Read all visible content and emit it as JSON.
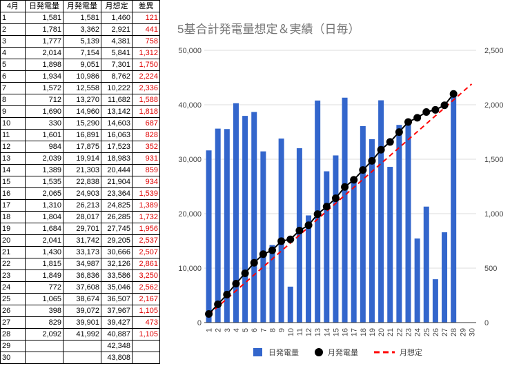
{
  "table": {
    "headers": [
      "4月",
      "日発電量",
      "月発電量",
      "月想定",
      "差異"
    ],
    "rows": [
      [
        "1",
        "1,581",
        "1,581",
        "1,460",
        "121"
      ],
      [
        "2",
        "1,781",
        "3,362",
        "2,921",
        "441"
      ],
      [
        "3",
        "1,777",
        "5,139",
        "4,381",
        "758"
      ],
      [
        "4",
        "2,014",
        "7,154",
        "5,841",
        "1,312"
      ],
      [
        "5",
        "1,898",
        "9,051",
        "7,301",
        "1,750"
      ],
      [
        "6",
        "1,934",
        "10,986",
        "8,762",
        "2,224"
      ],
      [
        "7",
        "1,572",
        "12,558",
        "10,222",
        "2,336"
      ],
      [
        "8",
        "712",
        "13,270",
        "11,682",
        "1,588"
      ],
      [
        "9",
        "1,690",
        "14,960",
        "13,142",
        "1,818"
      ],
      [
        "10",
        "330",
        "15,290",
        "14,603",
        "687"
      ],
      [
        "11",
        "1,601",
        "16,891",
        "16,063",
        "828"
      ],
      [
        "12",
        "984",
        "17,875",
        "17,523",
        "352"
      ],
      [
        "13",
        "2,039",
        "19,914",
        "18,983",
        "931"
      ],
      [
        "14",
        "1,389",
        "21,303",
        "20,444",
        "859"
      ],
      [
        "15",
        "1,535",
        "22,838",
        "21,904",
        "934"
      ],
      [
        "16",
        "2,065",
        "24,903",
        "23,364",
        "1,539"
      ],
      [
        "17",
        "1,310",
        "26,213",
        "24,825",
        "1,389"
      ],
      [
        "18",
        "1,804",
        "28,017",
        "26,285",
        "1,732"
      ],
      [
        "19",
        "1,684",
        "29,701",
        "27,745",
        "1,956"
      ],
      [
        "20",
        "2,041",
        "31,742",
        "29,205",
        "2,537"
      ],
      [
        "21",
        "1,430",
        "33,173",
        "30,666",
        "2,507"
      ],
      [
        "22",
        "1,815",
        "34,987",
        "32,126",
        "2,861"
      ],
      [
        "23",
        "1,849",
        "36,836",
        "33,586",
        "3,250"
      ],
      [
        "24",
        "772",
        "37,608",
        "35,046",
        "2,562"
      ],
      [
        "25",
        "1,065",
        "38,674",
        "36,507",
        "2,167"
      ],
      [
        "26",
        "398",
        "39,072",
        "37,967",
        "1,105"
      ],
      [
        "27",
        "829",
        "39,901",
        "39,427",
        "473"
      ],
      [
        "28",
        "2,092",
        "41,992",
        "40,887",
        "1,105"
      ],
      [
        "29",
        "",
        "",
        "42,348",
        ""
      ],
      [
        "30",
        "",
        "",
        "43,808",
        ""
      ]
    ]
  },
  "chart_data": {
    "type": "bar",
    "title": "5基合計発電量想定＆実績（日毎）",
    "categories": [
      "1",
      "2",
      "3",
      "4",
      "5",
      "6",
      "7",
      "8",
      "9",
      "10",
      "11",
      "12",
      "13",
      "14",
      "15",
      "16",
      "17",
      "18",
      "19",
      "20",
      "21",
      "22",
      "23",
      "24",
      "25",
      "26",
      "27",
      "28",
      "29",
      "30"
    ],
    "series": [
      {
        "name": "日発電量",
        "kind": "bar",
        "axis": "right",
        "color": "#3366cc",
        "values": [
          1581,
          1781,
          1777,
          2014,
          1898,
          1934,
          1572,
          712,
          1690,
          330,
          1601,
          984,
          2039,
          1389,
          1535,
          2065,
          1310,
          1804,
          1684,
          2041,
          1430,
          1815,
          1849,
          772,
          1065,
          398,
          829,
          2092,
          null,
          null
        ]
      },
      {
        "name": "月発電量",
        "kind": "line-markers",
        "axis": "left",
        "color": "#000000",
        "values": [
          1581,
          3362,
          5139,
          7154,
          9051,
          10986,
          12558,
          13270,
          14960,
          15290,
          16891,
          17875,
          19914,
          21303,
          22838,
          24903,
          26213,
          28017,
          29701,
          31742,
          33173,
          34987,
          36836,
          37608,
          38674,
          39072,
          39901,
          41992,
          null,
          null
        ]
      },
      {
        "name": "月想定",
        "kind": "line-dashed",
        "axis": "left",
        "color": "#ff0000",
        "values": [
          1460,
          2921,
          4381,
          5841,
          7301,
          8762,
          10222,
          11682,
          13142,
          14603,
          16063,
          17523,
          18983,
          20444,
          21904,
          23364,
          24825,
          26285,
          27745,
          29205,
          30666,
          32126,
          33586,
          35046,
          36507,
          37967,
          39427,
          40887,
          42348,
          43808
        ]
      }
    ],
    "left_axis": {
      "min": 0,
      "max": 50000,
      "ticks": [
        "0",
        "10,000",
        "20,000",
        "30,000",
        "40,000",
        "50,000"
      ]
    },
    "right_axis": {
      "min": 0,
      "max": 2500,
      "ticks": [
        "0",
        "500",
        "1,000",
        "1,500",
        "2,000",
        "2,500"
      ]
    },
    "grid": true,
    "legend": "bottom"
  }
}
